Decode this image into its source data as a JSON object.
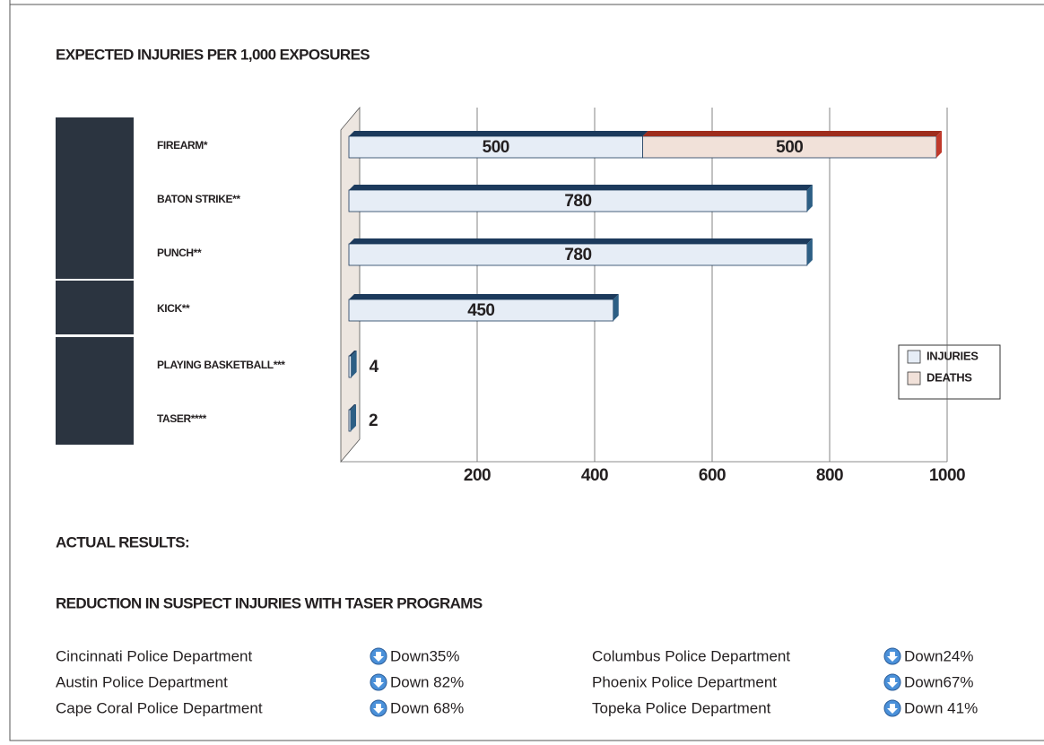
{
  "chart_data": {
    "type": "bar",
    "orientation": "horizontal",
    "stacked": true,
    "title": "EXPECTED INJURIES PER 1,000 EXPOSURES",
    "categories": [
      "FIREARM*",
      "BATON STRIKE**",
      "PUNCH**",
      "KICK**",
      "PLAYING BASKETBALL***",
      "TASER****"
    ],
    "series": [
      {
        "name": "INJURIES",
        "color": "#e6edf6",
        "values": [
          500,
          780,
          780,
          450,
          4,
          2
        ]
      },
      {
        "name": "DEATHS",
        "color": "#f1e1d9",
        "values": [
          500,
          null,
          null,
          null,
          null,
          null
        ]
      }
    ],
    "xlim": [
      0,
      1000
    ],
    "xticks": [
      200,
      400,
      600,
      800,
      1000
    ],
    "grid": true,
    "legend": "right"
  },
  "results": {
    "heading": "ACTUAL RESULTS:",
    "subtitle": "REDUCTION IN SUSPECT INJURIES WITH TASER PROGRAMS",
    "items": [
      {
        "department": "Cincinnati Police Department",
        "change": "Down35%"
      },
      {
        "department": "Austin Police Department",
        "change": "Down 82%"
      },
      {
        "department": "Cape Coral Police Department",
        "change": "Down 68%"
      },
      {
        "department": "Columbus Police Department",
        "change": "Down24%"
      },
      {
        "department": "Phoenix Police Department",
        "change": "Down67%"
      },
      {
        "department": "Topeka Police Department",
        "change": "Down 41%"
      }
    ]
  }
}
